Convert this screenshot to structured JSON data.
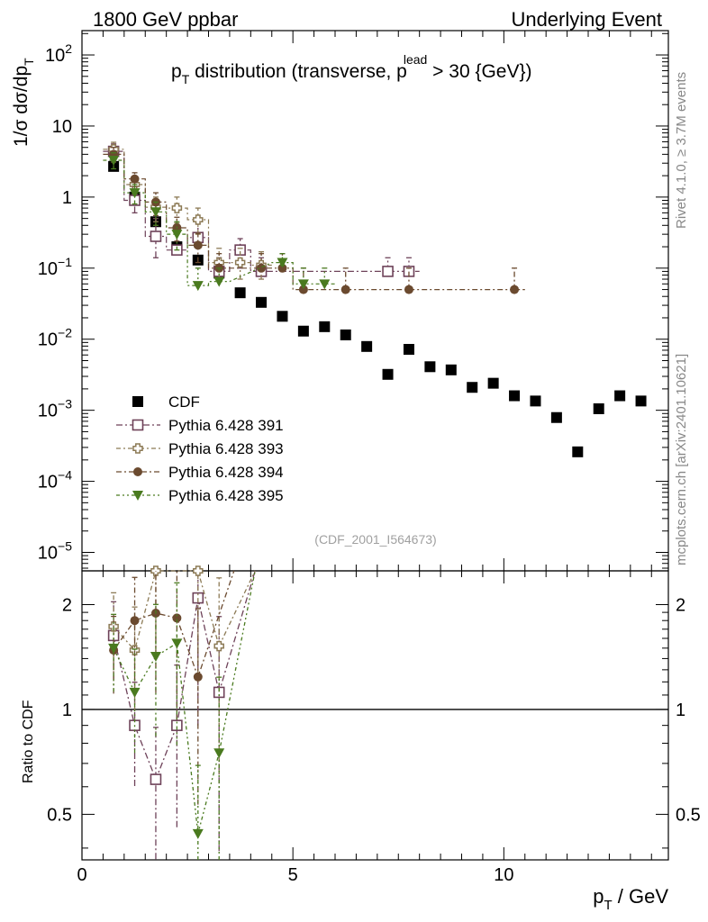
{
  "header": {
    "left": "1800 GeV ppbar",
    "right": "Underlying Event"
  },
  "side": {
    "rivet": "Rivet 4.1.0, ≥ 3.7M events",
    "mcplots": "mcplots.cern.ch [arXiv:2401.10621]"
  },
  "chart_data": [
    {
      "type": "scatter",
      "title": "pT distribution (transverse, pT lead > 30 {GeV})",
      "title_parts": {
        "p": "p",
        "sub_t": "T",
        "main": " distribution (transverse, p",
        "sup_lead": "lead",
        "tail": " > 30 {GeV})"
      },
      "ylabel": "1/σ dσ/dpT",
      "ylabel_parts": {
        "main": "1/σ  dσ/dp",
        "sub": "T"
      },
      "yscale": "log",
      "ylim": [
        5.5e-06,
        220
      ],
      "xlim": [
        0,
        13.9
      ],
      "y_ticks": [
        {
          "v": 100,
          "base": "10",
          "exp": "2"
        },
        {
          "v": 10,
          "base": "10",
          "exp": ""
        },
        {
          "v": 1,
          "base": "1",
          "exp": ""
        },
        {
          "v": 0.1,
          "base": "10",
          "exp": "−1"
        },
        {
          "v": 0.01,
          "base": "10",
          "exp": "−2"
        },
        {
          "v": 0.001,
          "base": "10",
          "exp": "−3"
        },
        {
          "v": 0.0001,
          "base": "10",
          "exp": "−4"
        },
        {
          "v": 1e-05,
          "base": "10",
          "exp": "−5"
        }
      ],
      "watermark": "(CDF_2001_I564673)",
      "legend_position": "lower-left",
      "series": [
        {
          "name": "CDF",
          "color": "#000000",
          "marker": "square",
          "x": [
            0.75,
            1.25,
            1.75,
            2.25,
            2.75,
            3.25,
            3.75,
            4.25,
            4.75,
            5.25,
            5.75,
            6.25,
            6.75,
            7.25,
            7.75,
            8.25,
            8.75,
            9.25,
            9.75,
            10.25,
            10.75,
            11.25,
            11.75,
            12.25,
            12.75,
            13.25
          ],
          "y": [
            2.7,
            1.0,
            0.45,
            0.2,
            0.13,
            0.085,
            0.045,
            0.033,
            0.021,
            0.013,
            0.015,
            0.0115,
            0.0079,
            0.0032,
            0.0072,
            0.0041,
            0.0037,
            0.0021,
            0.0024,
            0.0016,
            0.00135,
            0.00079,
            0.00026,
            0.00105,
            0.0016,
            0.00135
          ]
        },
        {
          "name": "Pythia 6.428 391",
          "color": "#6e4259",
          "marker": "open-square",
          "x": [
            0.75,
            1.25,
            1.75,
            2.25,
            2.75,
            3.25,
            3.75,
            4.25,
            7.25,
            7.75
          ],
          "y": [
            4.4,
            0.9,
            0.28,
            0.18,
            0.27,
            0.09,
            0.18,
            0.09,
            0.09,
            0.09
          ],
          "err_lo": [
            3.4,
            0.6,
            0.14,
            0.17,
            0.26,
            0.0899,
            0.1,
            0.0899,
            0.0899,
            0.0899
          ],
          "err_hi": [
            5.6,
            1.2,
            0.5,
            0.3,
            0.42,
            0.14,
            0.26,
            0.14,
            0.14,
            0.14
          ]
        },
        {
          "name": "Pythia 6.428 393",
          "color": "#8c7a55",
          "marker": "open-cross",
          "x": [
            0.75,
            1.25,
            1.75,
            2.25,
            2.75,
            3.25,
            3.75,
            4.25
          ],
          "y": [
            4.7,
            1.5,
            0.72,
            0.7,
            0.48,
            0.12,
            0.12,
            0.11
          ],
          "err_lo": [
            3.7,
            1.1,
            0.45,
            0.43,
            0.3,
            0.07,
            0.07,
            0.07
          ],
          "err_hi": [
            5.9,
            1.9,
            1.0,
            1.0,
            0.7,
            0.19,
            0.19,
            0.17
          ]
        },
        {
          "name": "Pythia 6.428 394",
          "color": "#6b4a2f",
          "marker": "circle",
          "x": [
            0.75,
            1.25,
            1.75,
            2.25,
            2.75,
            3.25,
            4.25,
            4.75,
            5.25,
            6.25,
            7.75,
            10.25
          ],
          "y": [
            4.0,
            1.8,
            0.85,
            0.37,
            0.21,
            0.1,
            0.1,
            0.1,
            0.05,
            0.05,
            0.05,
            0.05
          ],
          "err_lo": [
            3.1,
            1.4,
            0.55,
            0.24,
            0.12,
            0.0999,
            0.0999,
            0.0999,
            0.0499,
            0.0499,
            0.0499,
            0.0499
          ],
          "err_hi": [
            5.0,
            2.2,
            1.15,
            0.52,
            0.31,
            0.16,
            0.16,
            0.16,
            0.1,
            0.1,
            0.1,
            0.1
          ]
        },
        {
          "name": "Pythia 6.428 395",
          "color": "#4a7a1f",
          "marker": "triangle-down",
          "x": [
            0.75,
            1.25,
            1.75,
            2.25,
            2.75,
            3.25,
            4.75,
            5.25,
            5.75
          ],
          "y": [
            3.3,
            1.15,
            0.62,
            0.3,
            0.057,
            0.065,
            0.12,
            0.06,
            0.06
          ],
          "err_lo": [
            2.5,
            0.8,
            0.4,
            0.18,
            0.0569,
            0.0649,
            0.11,
            0.0599,
            0.0599
          ],
          "err_hi": [
            4.2,
            1.5,
            0.85,
            0.45,
            0.1,
            0.1,
            0.16,
            0.1,
            0.1
          ]
        }
      ]
    },
    {
      "type": "scatter",
      "title": "",
      "ylabel": "Ratio to CDF",
      "xlabel": "pT / GeV",
      "xlabel_parts": {
        "main": "p",
        "sub": "T",
        "tail": " / GeV"
      },
      "xlim": [
        0,
        13.9
      ],
      "ylim": [
        0.37,
        2.5
      ],
      "yscale": "log",
      "x_ticks": [
        0,
        5,
        10
      ],
      "y_ticks": [
        0.5,
        1,
        2
      ],
      "reference_line": 1,
      "series": [
        {
          "name": "Pythia 6.428 391",
          "x": [
            0.75,
            1.25,
            1.75,
            2.25,
            2.75,
            3.25
          ],
          "y": [
            1.63,
            0.9,
            0.63,
            0.9,
            2.09,
            1.12
          ]
        },
        {
          "name": "Pythia 6.428 393",
          "x": [
            0.75,
            1.25,
            1.75,
            2.75,
            3.25
          ],
          "y": [
            1.73,
            1.48,
            2.5,
            2.5,
            1.52
          ]
        },
        {
          "name": "Pythia 6.428 394",
          "x": [
            0.75,
            1.25,
            1.75,
            2.25,
            2.75
          ],
          "y": [
            1.48,
            1.8,
            1.89,
            1.83,
            1.24
          ]
        },
        {
          "name": "Pythia 6.428 395",
          "x": [
            0.75,
            1.25,
            1.75,
            2.25,
            2.75,
            3.25
          ],
          "y": [
            1.5,
            1.12,
            1.42,
            1.55,
            0.44,
            0.75
          ]
        }
      ]
    }
  ]
}
